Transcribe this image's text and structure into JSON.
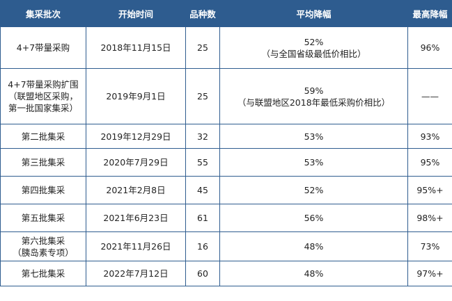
{
  "headers": [
    "集采批次",
    "开始时间",
    "品种数",
    "平均降幅",
    "最高降幅"
  ],
  "rows": [
    {
      "batch": [
        "4+7带量采购"
      ],
      "start": "2018年11月15日",
      "count": "25",
      "avg": [
        "52%",
        "（与全国省级最低价相比）"
      ],
      "max": "96%"
    },
    {
      "batch": [
        "4+7带量采购扩围",
        "（联盟地区采购，",
        "第一批国家集采）"
      ],
      "start": "2019年9月1日",
      "count": "25",
      "avg": [
        "59%",
        "（与联盟地区2018年最低采购价相比）"
      ],
      "max": "——"
    },
    {
      "batch": [
        "第二批集采"
      ],
      "start": "2019年12月29日",
      "count": "32",
      "avg": [
        "53%"
      ],
      "max": "93%"
    },
    {
      "batch": [
        "第三批集采"
      ],
      "start": "2020年7月29日",
      "count": "55",
      "avg": [
        "53%"
      ],
      "max": "95%"
    },
    {
      "batch": [
        "第四批集采"
      ],
      "start": "2021年2月8日",
      "count": "45",
      "avg": [
        "52%"
      ],
      "max": "95%+"
    },
    {
      "batch": [
        "第五批集采"
      ],
      "start": "2021年6月23日",
      "count": "61",
      "avg": [
        "56%"
      ],
      "max": "98%+"
    },
    {
      "batch": [
        "第六批集采",
        "（胰岛素专项）"
      ],
      "start": "2021年11月26日",
      "count": "16",
      "avg": [
        "48%"
      ],
      "max": "73%"
    },
    {
      "batch": [
        "第七批集采"
      ],
      "start": "2022年7月12日",
      "count": "60",
      "avg": [
        "48%"
      ],
      "max": "97%+"
    }
  ]
}
